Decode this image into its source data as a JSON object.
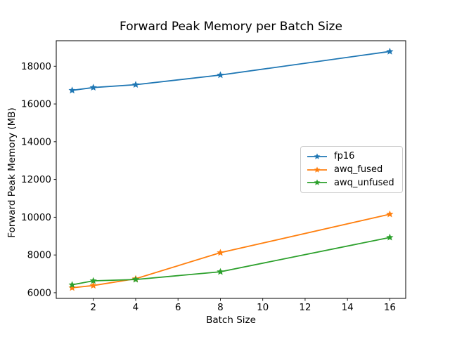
{
  "figure": {
    "background": "#ffffff",
    "text_color": "#000000"
  },
  "chart_data": {
    "type": "line",
    "title": "Forward Peak Memory per Batch Size",
    "xlabel": "Batch Size",
    "ylabel": "Forward Peak Memory (MB)",
    "x": [
      1,
      2,
      4,
      8,
      16
    ],
    "series": [
      {
        "name": "fp16",
        "color": "#1f77b4",
        "marker": "star",
        "values": [
          16720,
          16870,
          17020,
          17530,
          18780
        ]
      },
      {
        "name": "awq_fused",
        "color": "#ff7f0e",
        "marker": "star",
        "values": [
          6260,
          6380,
          6740,
          8120,
          10160
        ]
      },
      {
        "name": "awq_unfused",
        "color": "#2ca02c",
        "marker": "star",
        "values": [
          6420,
          6630,
          6700,
          7110,
          8930
        ]
      }
    ],
    "xticks": [
      2,
      4,
      6,
      8,
      10,
      12,
      14,
      16
    ],
    "yticks": [
      6000,
      8000,
      10000,
      12000,
      14000,
      16000,
      18000
    ],
    "xlim": [
      0.25,
      16.75
    ],
    "ylim": [
      5700,
      19350
    ],
    "grid": false,
    "legend": {
      "position": "center right",
      "border_color": "#cccccc"
    }
  }
}
